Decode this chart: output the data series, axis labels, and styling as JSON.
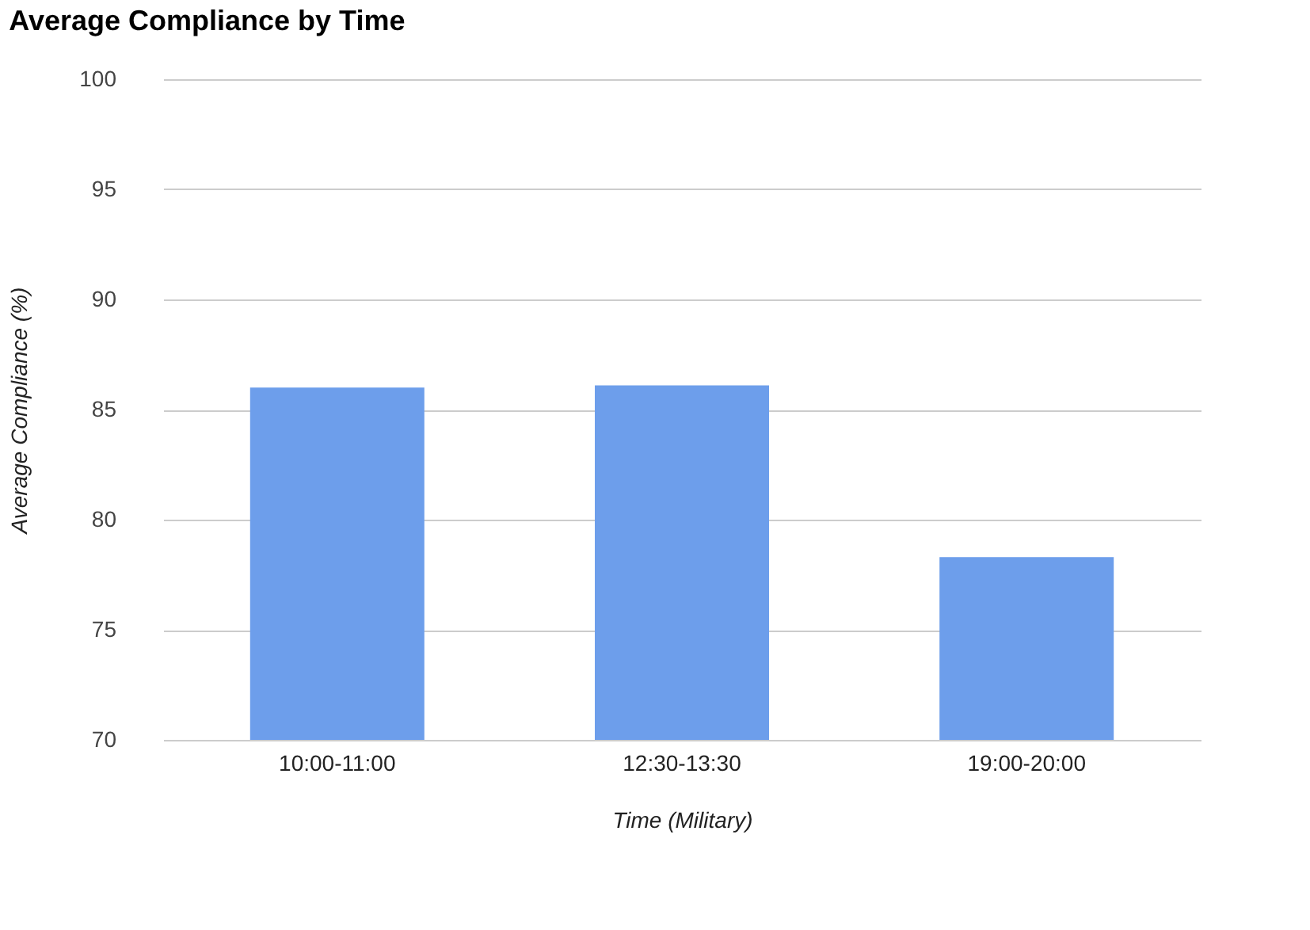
{
  "chart_data": {
    "type": "bar",
    "title": "Average Compliance by Time",
    "xlabel": "Time (Military)",
    "ylabel": "Average Compliance (%)",
    "categories": [
      "10:00-11:00",
      "12:30-13:30",
      "19:00-20:00"
    ],
    "values": [
      86.0,
      86.1,
      78.3
    ],
    "color": "#6d9eeb",
    "ylim": [
      70,
      100
    ],
    "yticks": [
      70,
      75,
      80,
      85,
      90,
      95,
      100
    ],
    "grid": "y"
  }
}
